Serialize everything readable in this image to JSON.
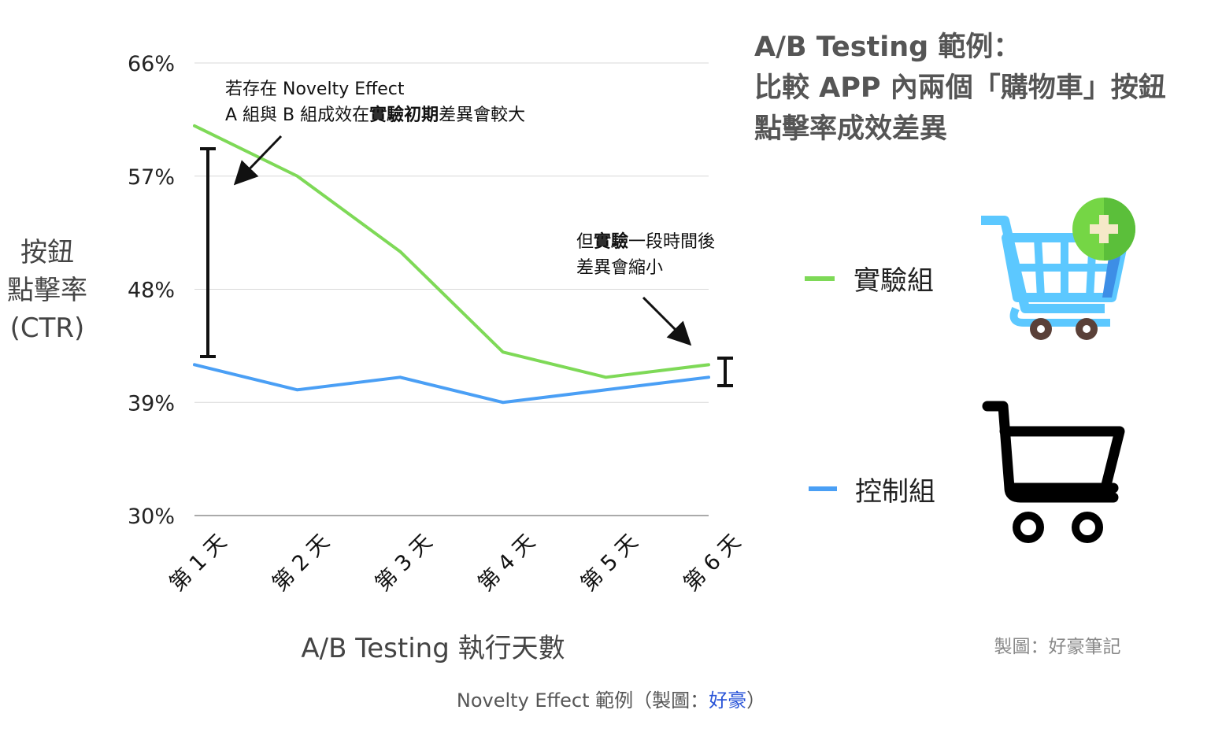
{
  "chart_data": {
    "type": "line",
    "title_lines": [
      "A/B Testing 範例：",
      "比較 APP 內兩個「購物車」按鈕",
      "點擊率成效差異"
    ],
    "xlabel": "A/B Testing 執行天數",
    "ylabel_lines": [
      "按鈕",
      "點擊率",
      "(CTR)"
    ],
    "categories": [
      "第 1 天",
      "第 2 天",
      "第 3 天",
      "第 4 天",
      "第 5 天",
      "第 6 天"
    ],
    "yticks": [
      30,
      39,
      48,
      57,
      66
    ],
    "ytick_labels": [
      "30%",
      "39%",
      "48%",
      "57%",
      "66%"
    ],
    "ylim": [
      30,
      66
    ],
    "grid": true,
    "series": [
      {
        "name": "實驗組",
        "color": "#7ed957",
        "values": [
          61,
          57,
          51,
          43,
          41,
          42
        ]
      },
      {
        "name": "控制組",
        "color": "#4a9ff5",
        "values": [
          42,
          40,
          41,
          39,
          40,
          41
        ]
      }
    ],
    "annotations": [
      {
        "lines": [
          [
            {
              "text": "若存在 Novelty Effect",
              "bold": false
            }
          ],
          [
            {
              "text": "A 組與 B 組成效在",
              "bold": false
            },
            {
              "text": "實驗初期",
              "bold": true
            },
            {
              "text": "差異會較大",
              "bold": false
            }
          ]
        ]
      },
      {
        "lines": [
          [
            {
              "text": "但",
              "bold": false
            },
            {
              "text": "實驗",
              "bold": true
            },
            {
              "text": "一段時間後",
              "bold": false
            }
          ],
          [
            {
              "text": "差異會縮小",
              "bold": false
            }
          ]
        ]
      }
    ],
    "credit": "製圖：好豪筆記"
  },
  "caption": {
    "prefix": "Novelty Effect 範例（製圖：",
    "link": "好豪",
    "suffix": "）"
  }
}
